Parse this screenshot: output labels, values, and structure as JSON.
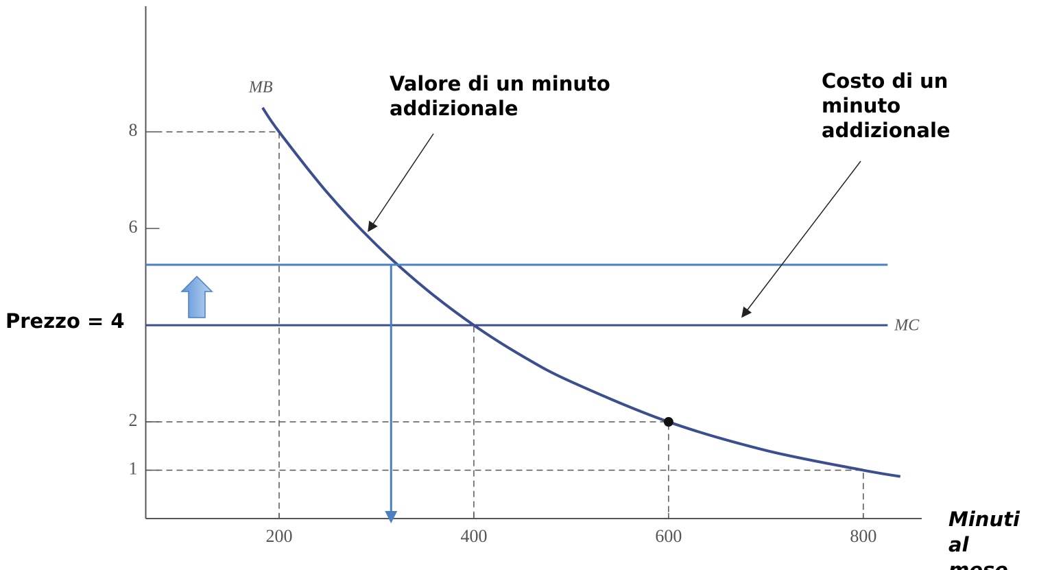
{
  "chart_data": {
    "type": "line",
    "xlim": [
      63,
      860
    ],
    "ylim": [
      0,
      10.6
    ],
    "xticks": [
      200,
      400,
      600,
      800
    ],
    "yticks": [
      1,
      2,
      6,
      8
    ],
    "x_label": [
      "Minuti",
      "al",
      "mese"
    ],
    "series": [
      {
        "name": "MB",
        "color": "#3b4e8e",
        "x": [
          183,
          200,
          250,
          300,
          350,
          400,
          450,
          500,
          600,
          700,
          800,
          838
        ],
        "values": [
          8.5,
          8,
          6.73,
          5.66,
          4.76,
          4,
          3.36,
          2.83,
          2,
          1.41,
          1,
          0.87
        ]
      },
      {
        "name": "MC",
        "color": "#3b4e8e",
        "x": [
          63,
          825
        ],
        "values": [
          4,
          4
        ]
      },
      {
        "color": "#4a7fc0",
        "x": [
          63,
          825
        ],
        "values": [
          5.25,
          5.25
        ]
      }
    ],
    "quantity_arrow": {
      "x": 315,
      "from": 5.25,
      "to": 0,
      "color": "#4a7fc0"
    },
    "guides": [
      {
        "x": 200,
        "y": 8
      },
      {
        "x": 400,
        "y": 4
      },
      {
        "x": 600,
        "y": 2
      },
      {
        "x": 800,
        "y": 1
      }
    ],
    "point": {
      "x": 600,
      "y": 2
    },
    "price_label": "Prezzo = 4",
    "annotations": [
      {
        "lines": [
          "Valore di un minuto",
          "addizionale"
        ]
      },
      {
        "lines": [
          "Costo di un",
          "minuto",
          "addizionale"
        ]
      }
    ]
  }
}
